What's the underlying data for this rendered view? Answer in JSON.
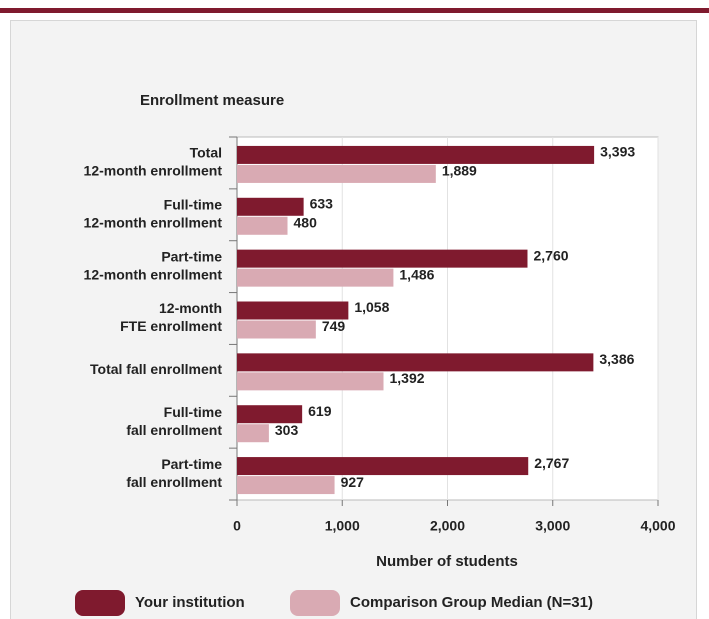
{
  "chart_data": {
    "type": "bar",
    "orientation": "horizontal",
    "y_axis_title": "Enrollment measure",
    "x_axis_title": "Number of students",
    "categories": [
      [
        "Total",
        "12-month enrollment"
      ],
      [
        "Full-time",
        "12-month enrollment"
      ],
      [
        "Part-time",
        "12-month enrollment"
      ],
      [
        "12-month",
        "FTE enrollment"
      ],
      [
        "Total fall enrollment"
      ],
      [
        "Full-time",
        "fall enrollment"
      ],
      [
        "Part-time",
        "fall enrollment"
      ]
    ],
    "series": [
      {
        "name": "Your institution",
        "color": "#7f1a2e",
        "values": [
          3393,
          633,
          2760,
          1058,
          3386,
          619,
          2767
        ],
        "value_labels": [
          "3,393",
          "633",
          "2,760",
          "1,058",
          "3,386",
          "619",
          "2,767"
        ]
      },
      {
        "name": "Comparison Group Median (N=31)",
        "color": "#d9aab3",
        "values": [
          1889,
          480,
          1486,
          749,
          1392,
          303,
          927
        ],
        "value_labels": [
          "1,889",
          "480",
          "1,486",
          "749",
          "1,392",
          "303",
          "927"
        ]
      }
    ],
    "xlim": [
      0,
      4000
    ],
    "xticks": [
      0,
      {
        "value": 1000,
        "label": "1,000"
      },
      {
        "value": 2000,
        "label": "2,000"
      },
      {
        "value": 3000,
        "label": "3,000"
      },
      {
        "value": 4000,
        "label": "4,000"
      }
    ],
    "grid": true
  }
}
